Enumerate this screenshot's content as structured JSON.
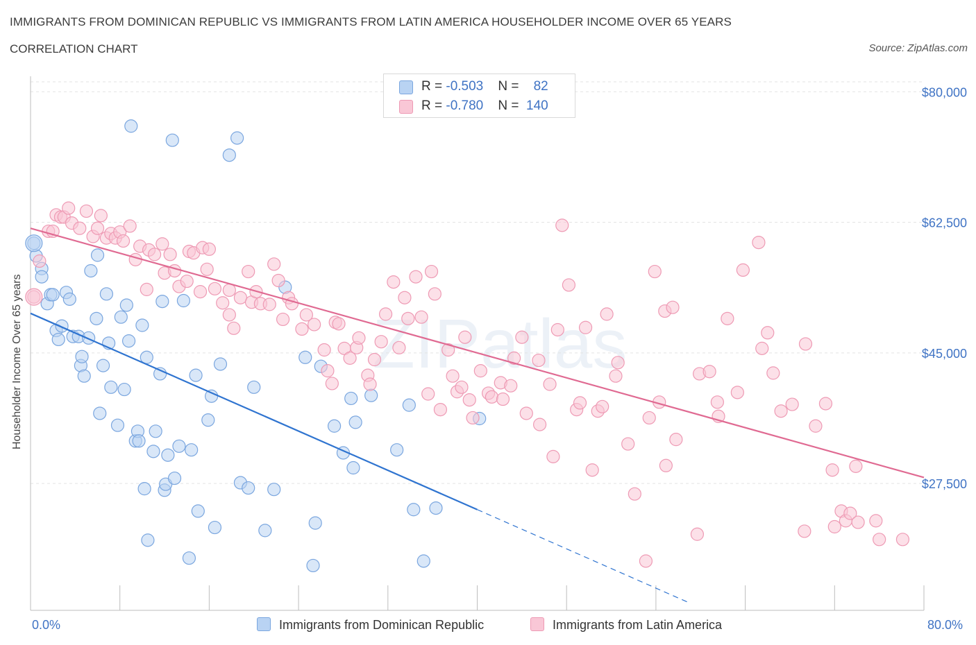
{
  "header": {
    "title": "IMMIGRANTS FROM DOMINICAN REPUBLIC VS IMMIGRANTS FROM LATIN AMERICA HOUSEHOLDER INCOME OVER 65 YEARS",
    "subtitle": "CORRELATION CHART",
    "source": "Source: ZipAtlas.com"
  },
  "watermark": "ZIPatlas",
  "colors": {
    "blue_fill": "#b9d3f3",
    "blue_stroke": "#7aa6df",
    "blue_line": "#2f74d0",
    "pink_fill": "#f9c7d6",
    "pink_stroke": "#ee9ab4",
    "pink_line": "#e06a92",
    "tick_label": "#3f73c4",
    "grid": "#e3e3e3"
  },
  "legend": {
    "rows": [
      {
        "r_label": "R = ",
        "r_value": "-0.503",
        "n_label": "N = ",
        "n_value": "82"
      },
      {
        "r_label": "R = ",
        "r_value": "-0.780",
        "n_label": "N = ",
        "n_value": "140"
      }
    ]
  },
  "chart_data": {
    "type": "scatter",
    "title": "IMMIGRANTS FROM DOMINICAN REPUBLIC VS IMMIGRANTS FROM LATIN AMERICA HOUSEHOLDER INCOME OVER 65 YEARS",
    "xlabel": "",
    "ylabel": "Householder Income Over 65 years",
    "xlim": [
      0,
      80
    ],
    "ylim": [
      10500,
      83000
    ],
    "x_tick_labels": [
      "0.0%",
      "80.0%"
    ],
    "y_ticks": [
      27500,
      45000,
      62500,
      80000
    ],
    "y_tick_labels": [
      "$27,500",
      "$45,000",
      "$62,500",
      "$80,000"
    ],
    "grid": true,
    "legend_position": "top-center",
    "series": [
      {
        "name": "Immigrants from Dominican Republic",
        "color": "#b9d3f3",
        "trend": {
          "x": [
            0,
            40
          ],
          "y": [
            50300,
            24000
          ],
          "dashed_to": [
            59,
            11500
          ]
        },
        "points": [
          [
            0.3,
            59.7
          ],
          [
            0.5,
            58.0
          ],
          [
            1.0,
            56.3
          ],
          [
            1.0,
            55.2
          ],
          [
            1.5,
            51.6
          ],
          [
            1.8,
            52.8
          ],
          [
            2.0,
            52.8
          ],
          [
            2.3,
            48.0
          ],
          [
            2.5,
            46.8
          ],
          [
            2.8,
            48.6
          ],
          [
            3.2,
            53.1
          ],
          [
            3.5,
            52.2
          ],
          [
            3.8,
            47.2
          ],
          [
            4.3,
            47.2
          ],
          [
            4.5,
            43.3
          ],
          [
            4.6,
            44.5
          ],
          [
            4.8,
            41.9
          ],
          [
            5.2,
            47.0
          ],
          [
            5.4,
            56.0
          ],
          [
            5.9,
            49.6
          ],
          [
            6.0,
            58.1
          ],
          [
            6.2,
            36.9
          ],
          [
            6.5,
            43.3
          ],
          [
            6.8,
            52.9
          ],
          [
            7.0,
            46.3
          ],
          [
            7.2,
            40.4
          ],
          [
            7.8,
            35.3
          ],
          [
            8.1,
            49.8
          ],
          [
            8.4,
            40.1
          ],
          [
            8.6,
            51.4
          ],
          [
            8.8,
            46.6
          ],
          [
            9.0,
            75.4
          ],
          [
            9.4,
            33.2
          ],
          [
            9.6,
            34.5
          ],
          [
            9.7,
            33.2
          ],
          [
            10.0,
            48.7
          ],
          [
            10.2,
            26.8
          ],
          [
            10.4,
            44.4
          ],
          [
            10.5,
            19.9
          ],
          [
            11.0,
            31.8
          ],
          [
            11.2,
            34.5
          ],
          [
            11.6,
            42.2
          ],
          [
            11.8,
            51.9
          ],
          [
            12.0,
            26.6
          ],
          [
            12.1,
            27.4
          ],
          [
            12.3,
            31.3
          ],
          [
            12.7,
            73.5
          ],
          [
            12.9,
            28.2
          ],
          [
            13.3,
            32.5
          ],
          [
            13.7,
            52.0
          ],
          [
            14.2,
            17.5
          ],
          [
            14.4,
            32.0
          ],
          [
            14.8,
            42.0
          ],
          [
            15.0,
            23.8
          ],
          [
            15.9,
            36.0
          ],
          [
            16.2,
            39.2
          ],
          [
            16.5,
            21.6
          ],
          [
            17.0,
            43.5
          ],
          [
            17.8,
            71.5
          ],
          [
            18.5,
            73.8
          ],
          [
            18.8,
            27.6
          ],
          [
            19.5,
            26.9
          ],
          [
            20.0,
            40.4
          ],
          [
            21.0,
            21.2
          ],
          [
            21.8,
            26.7
          ],
          [
            22.8,
            53.8
          ],
          [
            24.6,
            44.4
          ],
          [
            25.3,
            16.5
          ],
          [
            25.5,
            22.2
          ],
          [
            26.0,
            43.2
          ],
          [
            27.2,
            35.2
          ],
          [
            28.0,
            31.6
          ],
          [
            28.9,
            29.6
          ],
          [
            28.7,
            38.9
          ],
          [
            29.1,
            35.7
          ],
          [
            30.5,
            39.3
          ],
          [
            32.8,
            32.0
          ],
          [
            33.9,
            38.0
          ],
          [
            34.3,
            24.0
          ],
          [
            35.2,
            17.1
          ],
          [
            36.3,
            24.2
          ],
          [
            40.2,
            36.2
          ]
        ]
      },
      {
        "name": "Immigrants from Latin America",
        "color": "#f9c7d6",
        "trend": {
          "x": [
            0,
            80
          ],
          "y": [
            61700,
            28300
          ]
        },
        "points": [
          [
            0.3,
            52.5
          ],
          [
            0.8,
            57.3
          ],
          [
            1.6,
            61.3
          ],
          [
            2.0,
            61.3
          ],
          [
            2.3,
            63.5
          ],
          [
            2.7,
            63.2
          ],
          [
            3.0,
            63.2
          ],
          [
            3.4,
            64.4
          ],
          [
            3.7,
            62.4
          ],
          [
            4.4,
            61.7
          ],
          [
            5.0,
            64.0
          ],
          [
            5.6,
            60.6
          ],
          [
            6.0,
            61.7
          ],
          [
            6.3,
            63.4
          ],
          [
            6.8,
            60.4
          ],
          [
            7.2,
            61.0
          ],
          [
            7.6,
            60.4
          ],
          [
            8.0,
            61.2
          ],
          [
            8.3,
            60.0
          ],
          [
            8.9,
            62.0
          ],
          [
            9.4,
            57.5
          ],
          [
            9.8,
            59.3
          ],
          [
            10.4,
            53.5
          ],
          [
            10.6,
            58.8
          ],
          [
            11.1,
            58.2
          ],
          [
            11.8,
            59.6
          ],
          [
            12.0,
            55.7
          ],
          [
            12.5,
            58.2
          ],
          [
            12.9,
            56.0
          ],
          [
            13.3,
            53.9
          ],
          [
            14.0,
            54.6
          ],
          [
            14.2,
            58.6
          ],
          [
            14.6,
            58.4
          ],
          [
            15.2,
            53.2
          ],
          [
            15.4,
            59.1
          ],
          [
            15.8,
            56.2
          ],
          [
            16.0,
            58.9
          ],
          [
            16.5,
            53.6
          ],
          [
            17.2,
            51.7
          ],
          [
            17.8,
            50.1
          ],
          [
            17.8,
            53.4
          ],
          [
            18.2,
            48.3
          ],
          [
            18.8,
            52.4
          ],
          [
            19.5,
            55.9
          ],
          [
            19.8,
            51.8
          ],
          [
            20.2,
            53.2
          ],
          [
            20.6,
            51.6
          ],
          [
            21.4,
            51.5
          ],
          [
            21.8,
            56.9
          ],
          [
            22.2,
            54.7
          ],
          [
            22.6,
            49.5
          ],
          [
            23.1,
            52.4
          ],
          [
            23.4,
            51.6
          ],
          [
            24.3,
            48.2
          ],
          [
            24.7,
            50.1
          ],
          [
            25.4,
            48.8
          ],
          [
            26.3,
            45.4
          ],
          [
            26.6,
            42.6
          ],
          [
            27.0,
            40.9
          ],
          [
            27.3,
            49.1
          ],
          [
            27.6,
            48.9
          ],
          [
            28.1,
            45.6
          ],
          [
            28.6,
            44.3
          ],
          [
            29.2,
            45.7
          ],
          [
            29.4,
            47.0
          ],
          [
            30.2,
            42.0
          ],
          [
            30.4,
            40.8
          ],
          [
            30.8,
            44.1
          ],
          [
            31.4,
            46.5
          ],
          [
            31.8,
            50.2
          ],
          [
            32.5,
            54.5
          ],
          [
            33.0,
            45.7
          ],
          [
            33.5,
            52.4
          ],
          [
            33.8,
            49.6
          ],
          [
            34.5,
            55.2
          ],
          [
            35.0,
            49.8
          ],
          [
            35.6,
            39.5
          ],
          [
            35.9,
            55.9
          ],
          [
            36.2,
            52.9
          ],
          [
            36.7,
            37.4
          ],
          [
            37.4,
            45.4
          ],
          [
            37.8,
            41.9
          ],
          [
            38.2,
            39.8
          ],
          [
            38.6,
            40.4
          ],
          [
            38.9,
            47.1
          ],
          [
            39.3,
            38.7
          ],
          [
            39.6,
            36.3
          ],
          [
            40.3,
            42.6
          ],
          [
            41.0,
            39.6
          ],
          [
            41.3,
            39.1
          ],
          [
            42.1,
            41.0
          ],
          [
            42.3,
            38.8
          ],
          [
            43.0,
            40.6
          ],
          [
            43.3,
            44.3
          ],
          [
            44.0,
            47.1
          ],
          [
            44.4,
            36.9
          ],
          [
            45.5,
            44.0
          ],
          [
            45.6,
            35.4
          ],
          [
            46.5,
            40.8
          ],
          [
            46.8,
            31.1
          ],
          [
            47.2,
            48.1
          ],
          [
            47.6,
            62.1
          ],
          [
            48.2,
            54.1
          ],
          [
            48.9,
            37.4
          ],
          [
            49.2,
            38.3
          ],
          [
            49.7,
            48.4
          ],
          [
            50.3,
            29.3
          ],
          [
            50.8,
            37.2
          ],
          [
            51.2,
            37.8
          ],
          [
            51.6,
            50.2
          ],
          [
            52.4,
            41.9
          ],
          [
            52.6,
            43.7
          ],
          [
            53.5,
            32.8
          ],
          [
            54.1,
            26.1
          ],
          [
            55.1,
            17.1
          ],
          [
            55.4,
            36.3
          ],
          [
            55.9,
            55.9
          ],
          [
            56.3,
            38.4
          ],
          [
            56.8,
            50.6
          ],
          [
            56.9,
            29.9
          ],
          [
            57.5,
            51.1
          ],
          [
            57.8,
            33.4
          ],
          [
            59.7,
            20.7
          ],
          [
            59.9,
            42.2
          ],
          [
            60.8,
            42.5
          ],
          [
            61.5,
            38.4
          ],
          [
            61.6,
            36.5
          ],
          [
            62.4,
            49.6
          ],
          [
            63.3,
            39.7
          ],
          [
            63.8,
            56.1
          ],
          [
            65.2,
            59.8
          ],
          [
            65.5,
            45.6
          ],
          [
            66.0,
            47.7
          ],
          [
            66.5,
            42.3
          ],
          [
            67.2,
            37.2
          ],
          [
            68.2,
            38.1
          ],
          [
            69.3,
            21.1
          ],
          [
            69.4,
            46.2
          ],
          [
            70.3,
            35.2
          ],
          [
            71.2,
            38.2
          ],
          [
            71.8,
            29.3
          ],
          [
            72.0,
            21.7
          ],
          [
            72.6,
            23.8
          ],
          [
            73.0,
            22.5
          ],
          [
            73.4,
            23.5
          ],
          [
            73.9,
            29.8
          ],
          [
            74.1,
            22.3
          ],
          [
            75.7,
            22.5
          ],
          [
            76.0,
            20.0
          ],
          [
            78.1,
            20.0
          ]
        ]
      }
    ]
  },
  "bottom_legend": [
    {
      "label": "Immigrants from Dominican Republic"
    },
    {
      "label": "Immigrants from Latin America"
    }
  ]
}
